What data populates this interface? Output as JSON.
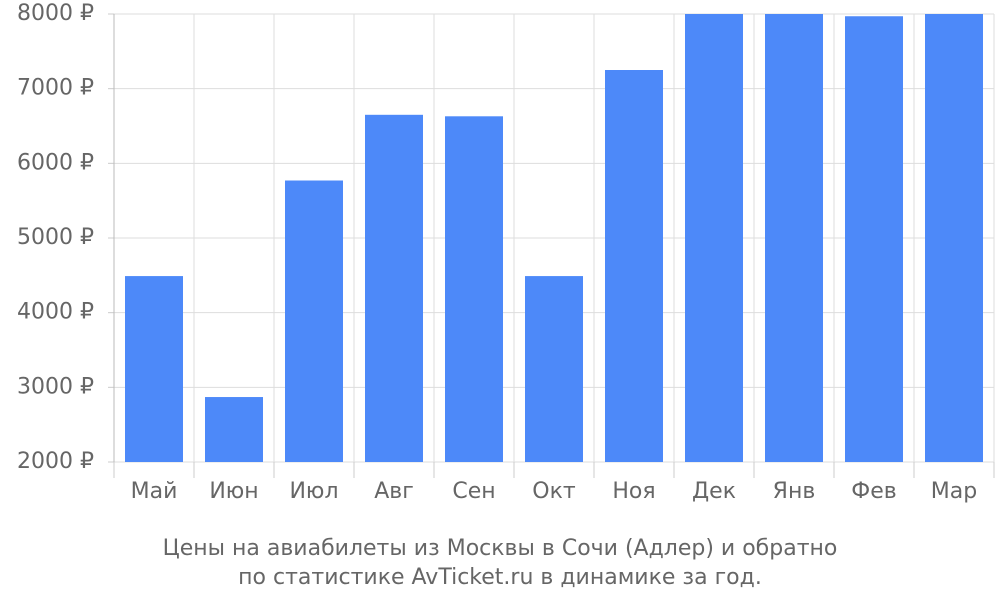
{
  "chart_data": {
    "type": "bar",
    "categories": [
      "Май",
      "Июн",
      "Июл",
      "Авг",
      "Сен",
      "Окт",
      "Ноя",
      "Дек",
      "Янв",
      "Фев",
      "Мар"
    ],
    "values": [
      4490,
      2870,
      5770,
      6650,
      6630,
      4490,
      7250,
      8000,
      8000,
      7970,
      8000
    ],
    "ylim": [
      2000,
      8000
    ],
    "y_ticks": [
      2000,
      3000,
      4000,
      5000,
      6000,
      7000,
      8000
    ],
    "y_tick_labels": [
      "2000 ₽",
      "3000 ₽",
      "4000 ₽",
      "5000 ₽",
      "6000 ₽",
      "7000 ₽",
      "8000 ₽"
    ],
    "grid": true,
    "bar_color": "#4d89f9",
    "grid_color": "#dddddd",
    "text_color": "#666666",
    "caption_lines": [
      "Цены на авиабилеты из Москвы в Сочи (Адлер) и обратно",
      "по статистике AvTicket.ru в динамике за год."
    ]
  }
}
